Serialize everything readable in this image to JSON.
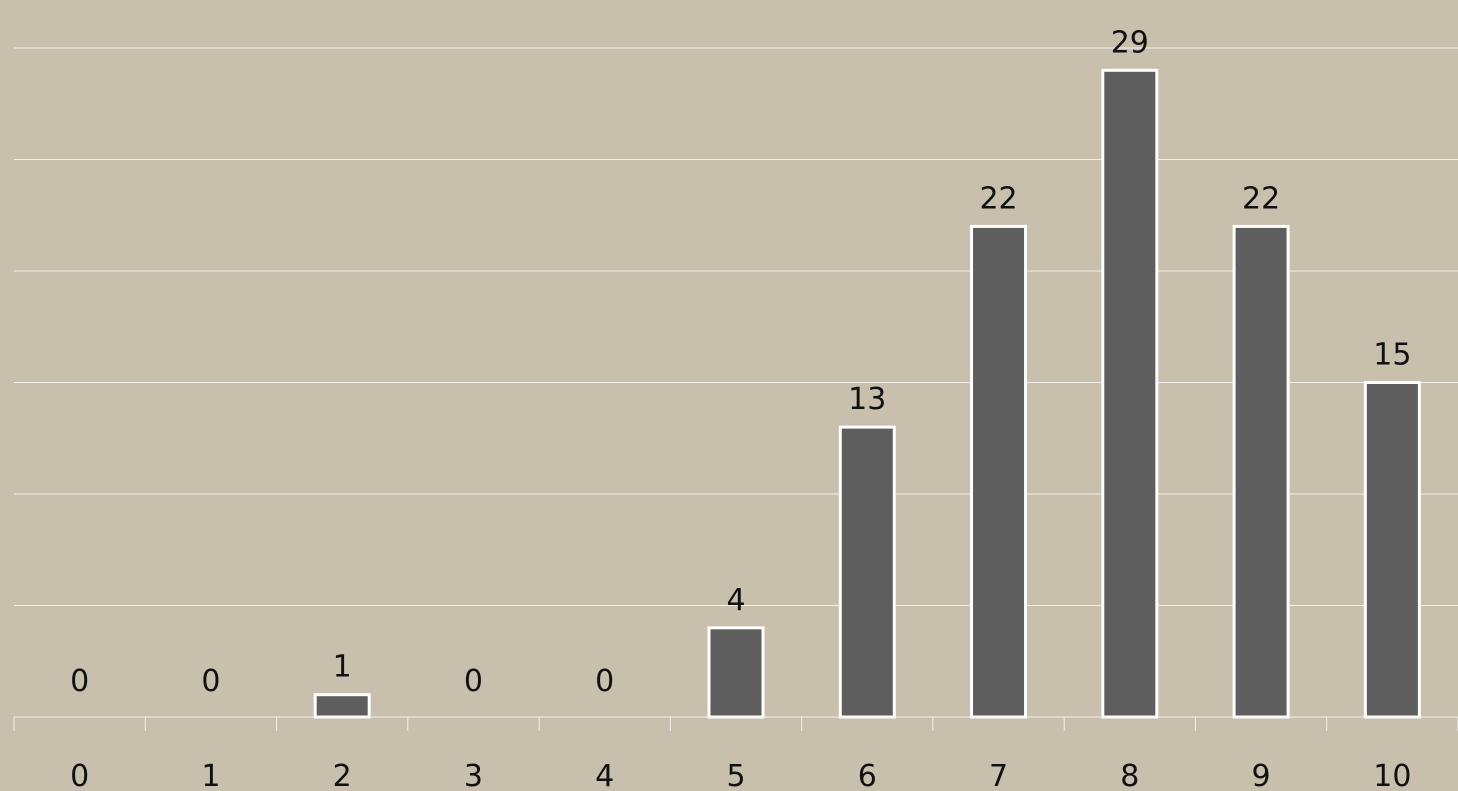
{
  "chart_data": {
    "type": "bar",
    "title": "",
    "xlabel": "",
    "ylabel": "",
    "categories": [
      "0",
      "1",
      "2",
      "3",
      "4",
      "5",
      "6",
      "7",
      "8",
      "9",
      "10"
    ],
    "values": [
      0,
      0,
      1,
      0,
      0,
      4,
      13,
      22,
      29,
      22,
      15
    ],
    "ylim": [
      0,
      30
    ],
    "grid": true,
    "legend": "none",
    "colors": {
      "background": "#c8bfad",
      "bar_fill": "#5e5e5e",
      "bar_edge": "#ffffff",
      "grid": "#f4f1ec",
      "text": "#111111"
    }
  }
}
